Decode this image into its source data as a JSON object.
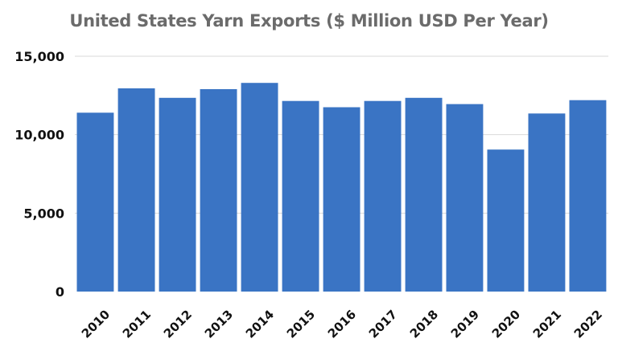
{
  "chart_data": {
    "type": "bar",
    "title": "United States Yarn Exports ($ Million USD Per Year)",
    "xlabel": "",
    "ylabel": "",
    "categories": [
      "2010",
      "2011",
      "2012",
      "2013",
      "2014",
      "2015",
      "2016",
      "2017",
      "2018",
      "2019",
      "2020",
      "2021",
      "2022"
    ],
    "values": [
      11400,
      12950,
      12350,
      12900,
      13300,
      12150,
      11750,
      12150,
      12350,
      11950,
      9050,
      11350,
      12200
    ],
    "ylim": [
      0,
      15000
    ],
    "yticks": [
      0,
      5000,
      10000,
      15000
    ],
    "ytick_labels": [
      "0",
      "5,000",
      "10,000",
      "15,000"
    ],
    "grid": true,
    "legend": "none",
    "colors": {
      "bar": "#3a74c4",
      "grid": "#d9d9d9",
      "title": "#6b6b6b",
      "text": "#111111"
    }
  }
}
